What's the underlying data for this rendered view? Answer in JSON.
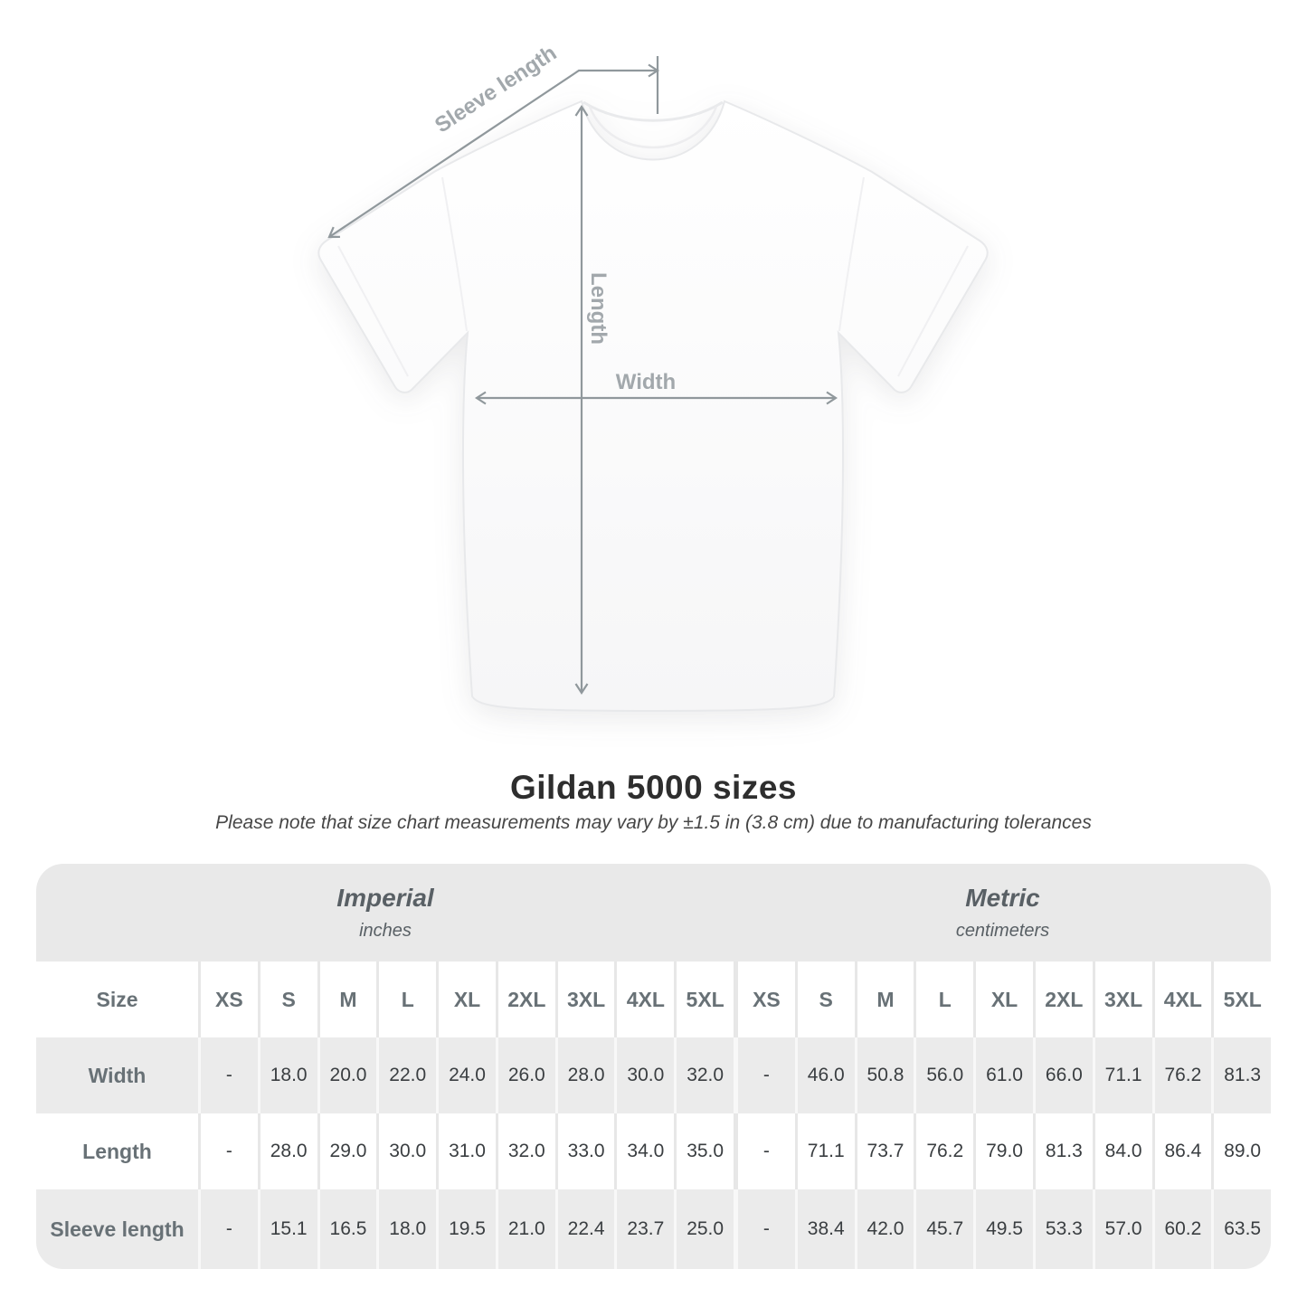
{
  "diagram": {
    "sleeve_label": "Sleeve length",
    "length_label": "Length",
    "width_label": "Width"
  },
  "title": "Gildan 5000 sizes",
  "subtitle": "Please note that size chart measurements may vary by ±1.5 in (3.8 cm) due to manufacturing tolerances",
  "table": {
    "size_label": "Size",
    "sections": [
      {
        "name": "Imperial",
        "unit": "inches"
      },
      {
        "name": "Metric",
        "unit": "centimeters"
      }
    ],
    "sizes": [
      "XS",
      "S",
      "M",
      "L",
      "XL",
      "2XL",
      "3XL",
      "4XL",
      "5XL"
    ],
    "rows": [
      {
        "label": "Width",
        "imperial": [
          "-",
          "18.0",
          "20.0",
          "22.0",
          "24.0",
          "26.0",
          "28.0",
          "30.0",
          "32.0"
        ],
        "metric": [
          "-",
          "46.0",
          "50.8",
          "56.0",
          "61.0",
          "66.0",
          "71.1",
          "76.2",
          "81.3"
        ]
      },
      {
        "label": "Length",
        "imperial": [
          "-",
          "28.0",
          "29.0",
          "30.0",
          "31.0",
          "32.0",
          "33.0",
          "34.0",
          "35.0"
        ],
        "metric": [
          "-",
          "71.1",
          "73.7",
          "76.2",
          "79.0",
          "81.3",
          "84.0",
          "86.4",
          "89.0"
        ]
      },
      {
        "label": "Sleeve length",
        "imperial": [
          "-",
          "15.1",
          "16.5",
          "18.0",
          "19.5",
          "21.0",
          "22.4",
          "23.7",
          "25.0"
        ],
        "metric": [
          "-",
          "38.4",
          "42.0",
          "45.7",
          "49.5",
          "53.3",
          "57.0",
          "60.2",
          "63.5"
        ]
      }
    ]
  },
  "chart_data": {
    "type": "table",
    "title": "Gildan 5000 sizes",
    "note": "Size chart measurements may vary by ±1.5 in (3.8 cm) due to manufacturing tolerances",
    "categories_sizes": [
      "XS",
      "S",
      "M",
      "L",
      "XL",
      "2XL",
      "3XL",
      "4XL",
      "5XL"
    ],
    "series": [
      {
        "name": "Width",
        "unit": "in",
        "values": [
          null,
          18.0,
          20.0,
          22.0,
          24.0,
          26.0,
          28.0,
          30.0,
          32.0
        ]
      },
      {
        "name": "Length",
        "unit": "in",
        "values": [
          null,
          28.0,
          29.0,
          30.0,
          31.0,
          32.0,
          33.0,
          34.0,
          35.0
        ]
      },
      {
        "name": "Sleeve length",
        "unit": "in",
        "values": [
          null,
          15.1,
          16.5,
          18.0,
          19.5,
          21.0,
          22.4,
          23.7,
          25.0
        ]
      },
      {
        "name": "Width",
        "unit": "cm",
        "values": [
          null,
          46.0,
          50.8,
          56.0,
          61.0,
          66.0,
          71.1,
          76.2,
          81.3
        ]
      },
      {
        "name": "Length",
        "unit": "cm",
        "values": [
          null,
          71.1,
          73.7,
          76.2,
          79.0,
          81.3,
          84.0,
          86.4,
          89.0
        ]
      },
      {
        "name": "Sleeve length",
        "unit": "cm",
        "values": [
          null,
          38.4,
          42.0,
          45.7,
          49.5,
          53.3,
          57.0,
          60.2,
          63.5
        ]
      }
    ]
  }
}
